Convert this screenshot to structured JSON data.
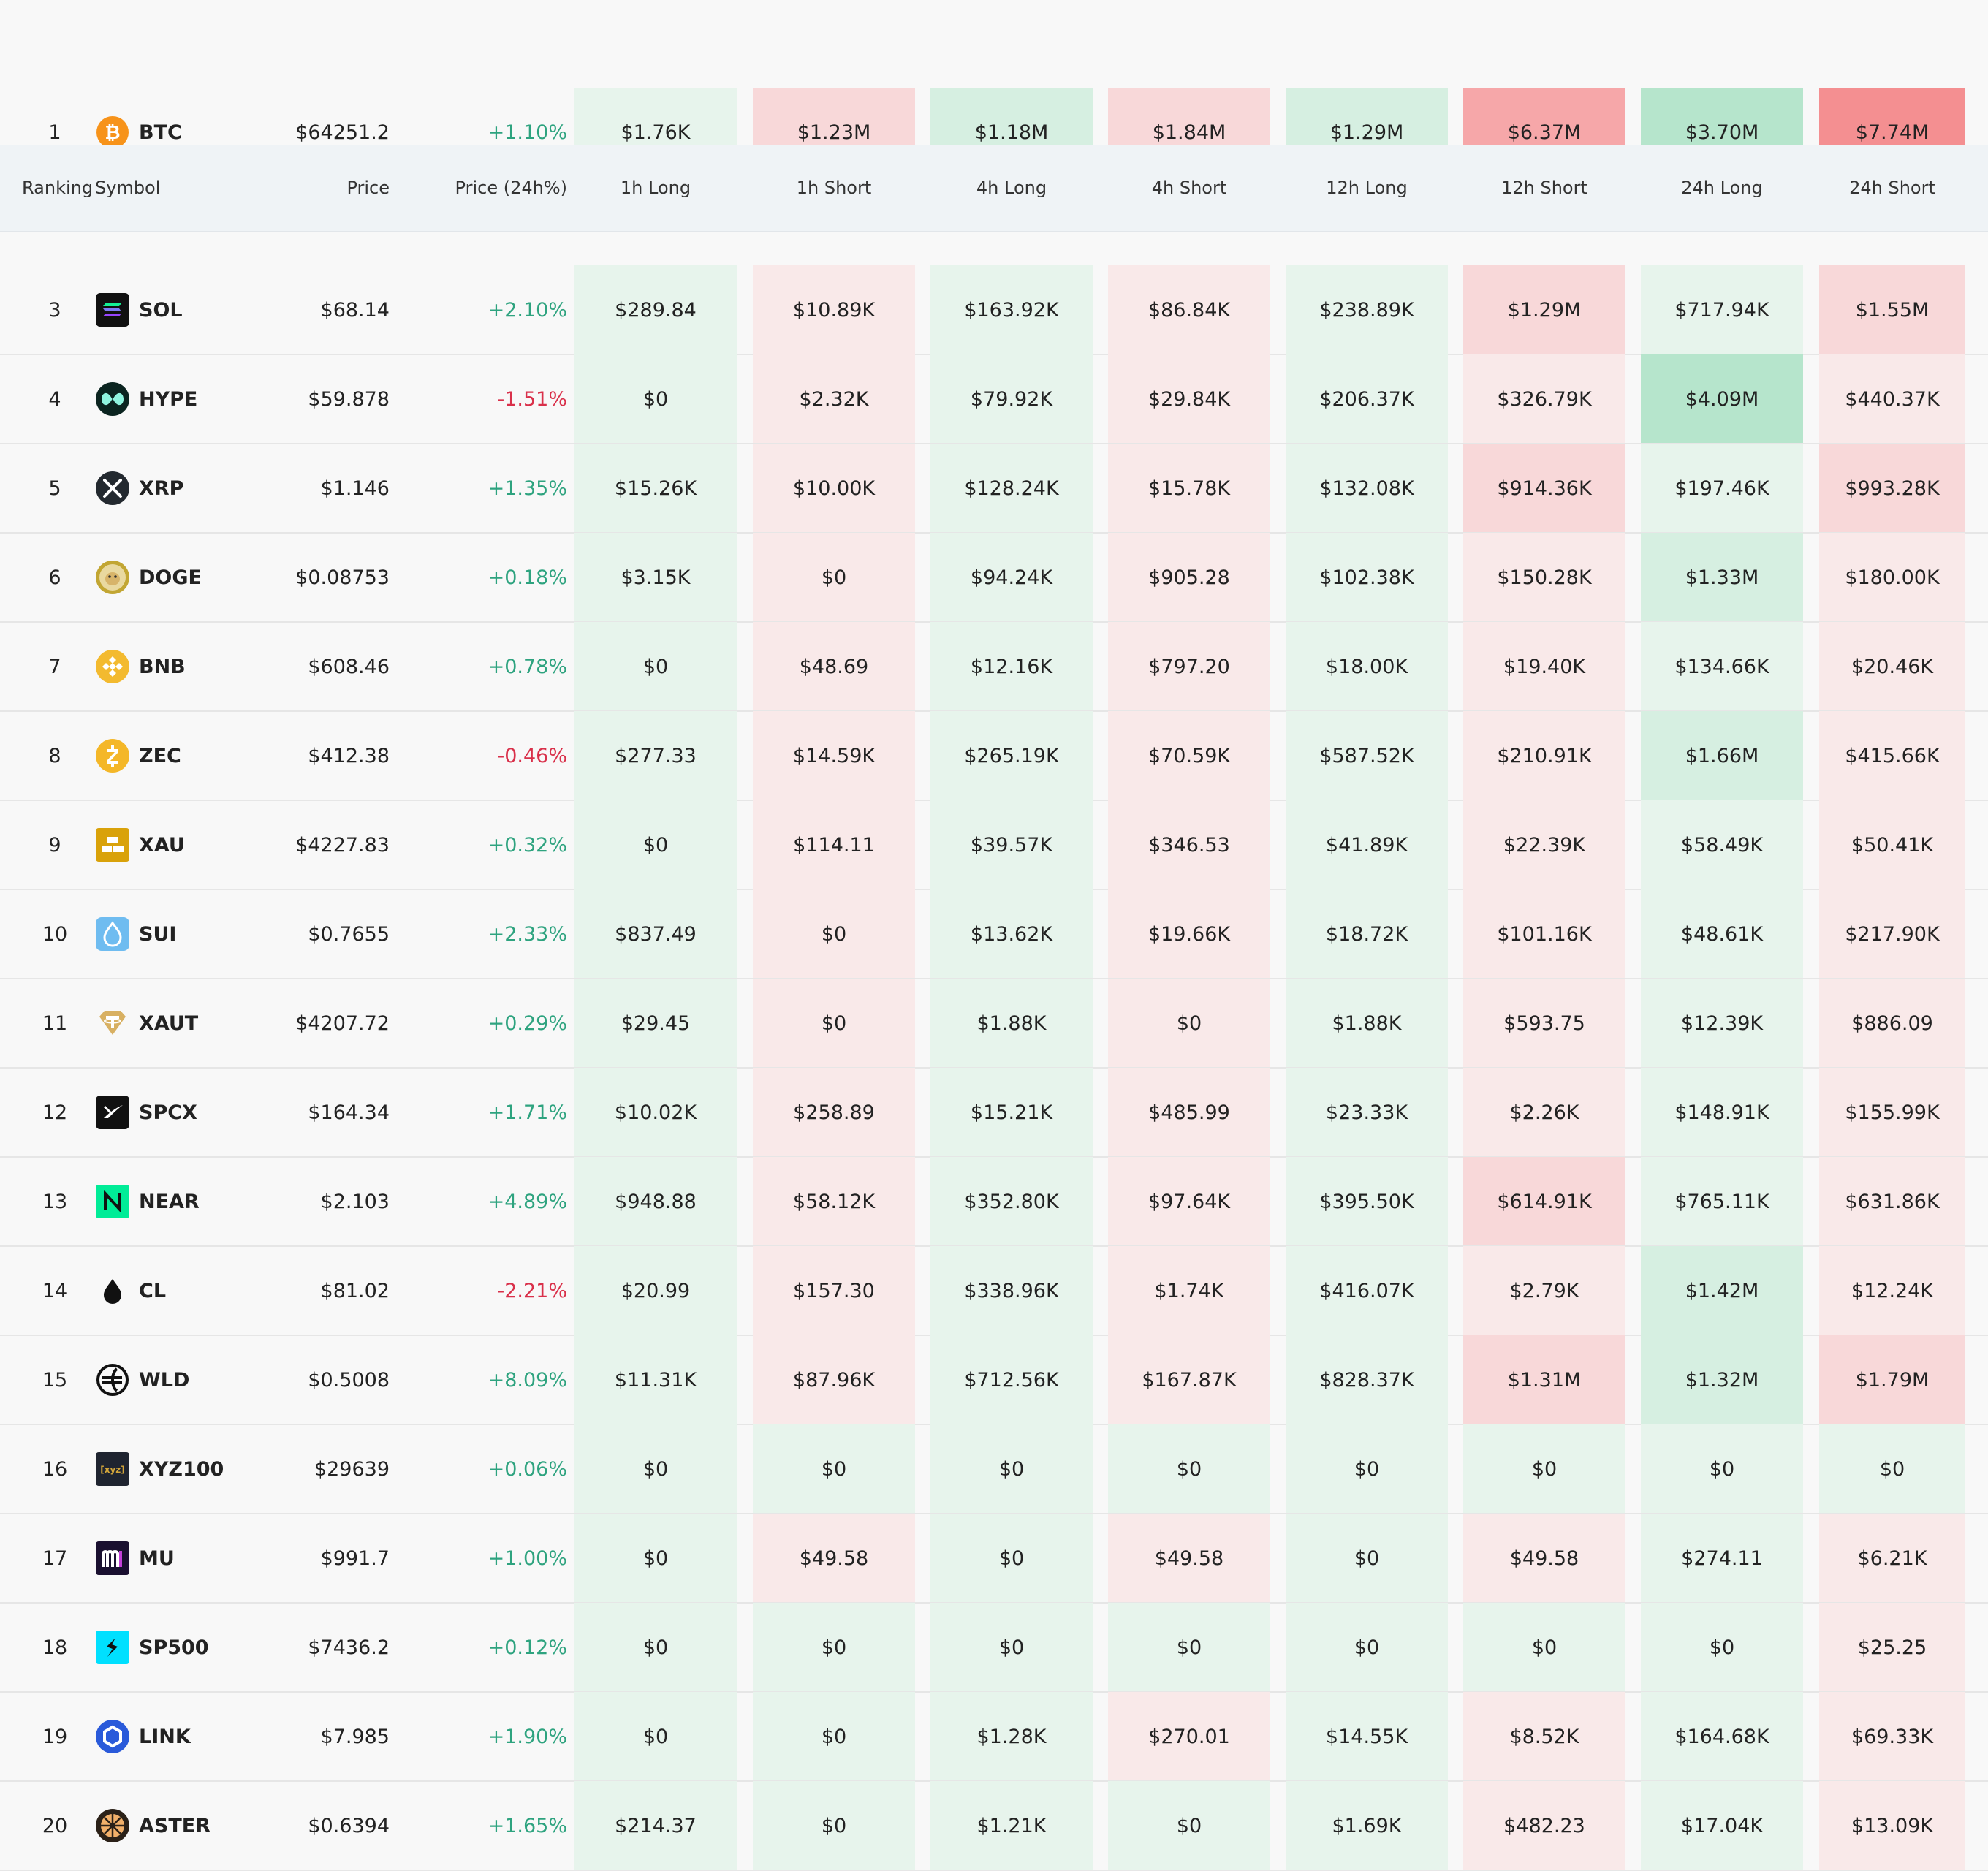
{
  "colors": {
    "background": "#f8f8f8",
    "header_bg": "#eff3f6",
    "positive_text": "#2ea37f",
    "negative_text": "#d9304a",
    "long_shade_light": "#e7f4ec",
    "long_shade_mid": "#d6efe1",
    "long_shade_strong": "#b6e5cc",
    "short_shade_light": "#f9e9e9",
    "short_shade_mid": "#f8d8d9",
    "short_shade_strong": "#f6a7a9"
  },
  "header": {
    "ranking": "Ranking",
    "symbol": "Symbol",
    "price": "Price",
    "price_change": "Price (24h%)",
    "h1_long": "1h Long",
    "h1_short": "1h Short",
    "h4_long": "4h Long",
    "h4_short": "4h Short",
    "h12_long": "12h Long",
    "h12_short": "12h Short",
    "h24_long": "24h Long",
    "h24_short": "24h Short"
  },
  "rows": [
    {
      "rank": "1",
      "symbol": "BTC",
      "icon": "bitcoin-icon",
      "price": "$64251.2",
      "change": "+1.10%",
      "dir": "up",
      "values": [
        "$1.76K",
        "$1.23M",
        "$1.18M",
        "$1.84M",
        "$1.29M",
        "$6.37M",
        "$3.70M",
        "$7.74M"
      ],
      "levels": [
        "l",
        "m",
        "m",
        "m",
        "m",
        "s",
        "s",
        "x"
      ]
    },
    {
      "rank": "3",
      "symbol": "SOL",
      "icon": "solana-icon",
      "price": "$68.14",
      "change": "+2.10%",
      "dir": "up",
      "values": [
        "$289.84",
        "$10.89K",
        "$163.92K",
        "$86.84K",
        "$238.89K",
        "$1.29M",
        "$717.94K",
        "$1.55M"
      ],
      "levels": [
        "l",
        "l",
        "l",
        "l",
        "l",
        "m",
        "l",
        "m"
      ]
    },
    {
      "rank": "4",
      "symbol": "HYPE",
      "icon": "hyperliquid-icon",
      "price": "$59.878",
      "change": "-1.51%",
      "dir": "down",
      "values": [
        "$0",
        "$2.32K",
        "$79.92K",
        "$29.84K",
        "$206.37K",
        "$326.79K",
        "$4.09M",
        "$440.37K"
      ],
      "levels": [
        "l",
        "l",
        "l",
        "l",
        "l",
        "l",
        "s",
        "l"
      ]
    },
    {
      "rank": "5",
      "symbol": "XRP",
      "icon": "xrp-icon",
      "price": "$1.146",
      "change": "+1.35%",
      "dir": "up",
      "values": [
        "$15.26K",
        "$10.00K",
        "$128.24K",
        "$15.78K",
        "$132.08K",
        "$914.36K",
        "$197.46K",
        "$993.28K"
      ],
      "levels": [
        "l",
        "l",
        "l",
        "l",
        "l",
        "m",
        "l",
        "m"
      ]
    },
    {
      "rank": "6",
      "symbol": "DOGE",
      "icon": "dogecoin-icon",
      "price": "$0.08753",
      "change": "+0.18%",
      "dir": "up",
      "values": [
        "$3.15K",
        "$0",
        "$94.24K",
        "$905.28",
        "$102.38K",
        "$150.28K",
        "$1.33M",
        "$180.00K"
      ],
      "levels": [
        "l",
        "l",
        "l",
        "l",
        "l",
        "l",
        "m",
        "l"
      ]
    },
    {
      "rank": "7",
      "symbol": "BNB",
      "icon": "bnb-icon",
      "price": "$608.46",
      "change": "+0.78%",
      "dir": "up",
      "values": [
        "$0",
        "$48.69",
        "$12.16K",
        "$797.20",
        "$18.00K",
        "$19.40K",
        "$134.66K",
        "$20.46K"
      ],
      "levels": [
        "l",
        "l",
        "l",
        "l",
        "l",
        "l",
        "l",
        "l"
      ]
    },
    {
      "rank": "8",
      "symbol": "ZEC",
      "icon": "zcash-icon",
      "price": "$412.38",
      "change": "-0.46%",
      "dir": "down",
      "values": [
        "$277.33",
        "$14.59K",
        "$265.19K",
        "$70.59K",
        "$587.52K",
        "$210.91K",
        "$1.66M",
        "$415.66K"
      ],
      "levels": [
        "l",
        "l",
        "l",
        "l",
        "l",
        "l",
        "m",
        "l"
      ]
    },
    {
      "rank": "9",
      "symbol": "XAU",
      "icon": "gold-bars-icon",
      "price": "$4227.83",
      "change": "+0.32%",
      "dir": "up",
      "values": [
        "$0",
        "$114.11",
        "$39.57K",
        "$346.53",
        "$41.89K",
        "$22.39K",
        "$58.49K",
        "$50.41K"
      ],
      "levels": [
        "l",
        "l",
        "l",
        "l",
        "l",
        "l",
        "l",
        "l"
      ]
    },
    {
      "rank": "10",
      "symbol": "SUI",
      "icon": "sui-drop-icon",
      "price": "$0.7655",
      "change": "+2.33%",
      "dir": "up",
      "values": [
        "$837.49",
        "$0",
        "$13.62K",
        "$19.66K",
        "$18.72K",
        "$101.16K",
        "$48.61K",
        "$217.90K"
      ],
      "levels": [
        "l",
        "l",
        "l",
        "l",
        "l",
        "l",
        "l",
        "l"
      ]
    },
    {
      "rank": "11",
      "symbol": "XAUT",
      "icon": "tether-gold-icon",
      "price": "$4207.72",
      "change": "+0.29%",
      "dir": "up",
      "values": [
        "$29.45",
        "$0",
        "$1.88K",
        "$0",
        "$1.88K",
        "$593.75",
        "$12.39K",
        "$886.09"
      ],
      "levels": [
        "l",
        "l",
        "l",
        "l",
        "l",
        "l",
        "l",
        "l"
      ]
    },
    {
      "rank": "12",
      "symbol": "SPCX",
      "icon": "spacex-icon",
      "price": "$164.34",
      "change": "+1.71%",
      "dir": "up",
      "values": [
        "$10.02K",
        "$258.89",
        "$15.21K",
        "$485.99",
        "$23.33K",
        "$2.26K",
        "$148.91K",
        "$155.99K"
      ],
      "levels": [
        "l",
        "l",
        "l",
        "l",
        "l",
        "l",
        "l",
        "l"
      ]
    },
    {
      "rank": "13",
      "symbol": "NEAR",
      "icon": "near-icon",
      "price": "$2.103",
      "change": "+4.89%",
      "dir": "up",
      "values": [
        "$948.88",
        "$58.12K",
        "$352.80K",
        "$97.64K",
        "$395.50K",
        "$614.91K",
        "$765.11K",
        "$631.86K"
      ],
      "levels": [
        "l",
        "l",
        "l",
        "l",
        "l",
        "m",
        "l",
        "l"
      ]
    },
    {
      "rank": "14",
      "symbol": "CL",
      "icon": "oil-drop-icon",
      "price": "$81.02",
      "change": "-2.21%",
      "dir": "down",
      "values": [
        "$20.99",
        "$157.30",
        "$338.96K",
        "$1.74K",
        "$416.07K",
        "$2.79K",
        "$1.42M",
        "$12.24K"
      ],
      "levels": [
        "l",
        "l",
        "l",
        "l",
        "l",
        "l",
        "m",
        "l"
      ]
    },
    {
      "rank": "15",
      "symbol": "WLD",
      "icon": "worldcoin-icon",
      "price": "$0.5008",
      "change": "+8.09%",
      "dir": "up",
      "values": [
        "$11.31K",
        "$87.96K",
        "$712.56K",
        "$167.87K",
        "$828.37K",
        "$1.31M",
        "$1.32M",
        "$1.79M"
      ],
      "levels": [
        "l",
        "l",
        "l",
        "l",
        "l",
        "m",
        "m",
        "m"
      ]
    },
    {
      "rank": "16",
      "symbol": "XYZ100",
      "icon": "xyz-index-icon",
      "price": "$29639",
      "change": "+0.06%",
      "dir": "up",
      "values": [
        "$0",
        "$0",
        "$0",
        "$0",
        "$0",
        "$0",
        "$0",
        "$0"
      ],
      "levels": [
        "l",
        "g",
        "l",
        "g",
        "l",
        "g",
        "l",
        "g"
      ]
    },
    {
      "rank": "17",
      "symbol": "MU",
      "icon": "micron-icon",
      "price": "$991.7",
      "change": "+1.00%",
      "dir": "up",
      "values": [
        "$0",
        "$49.58",
        "$0",
        "$49.58",
        "$0",
        "$49.58",
        "$274.11",
        "$6.21K"
      ],
      "levels": [
        "l",
        "l",
        "l",
        "l",
        "l",
        "l",
        "l",
        "l"
      ]
    },
    {
      "rank": "18",
      "symbol": "SP500",
      "icon": "sp500-icon",
      "price": "$7436.2",
      "change": "+0.12%",
      "dir": "up",
      "values": [
        "$0",
        "$0",
        "$0",
        "$0",
        "$0",
        "$0",
        "$0",
        "$25.25"
      ],
      "levels": [
        "l",
        "g",
        "l",
        "g",
        "l",
        "g",
        "l",
        "l"
      ]
    },
    {
      "rank": "19",
      "symbol": "LINK",
      "icon": "chainlink-icon",
      "price": "$7.985",
      "change": "+1.90%",
      "dir": "up",
      "values": [
        "$0",
        "$0",
        "$1.28K",
        "$270.01",
        "$14.55K",
        "$8.52K",
        "$164.68K",
        "$69.33K"
      ],
      "levels": [
        "l",
        "g",
        "l",
        "l",
        "l",
        "l",
        "l",
        "l"
      ]
    },
    {
      "rank": "20",
      "symbol": "ASTER",
      "icon": "aster-icon",
      "price": "$0.6394",
      "change": "+1.65%",
      "dir": "up",
      "values": [
        "$214.37",
        "$0",
        "$1.21K",
        "$0",
        "$1.69K",
        "$482.23",
        "$17.04K",
        "$13.09K"
      ],
      "levels": [
        "l",
        "g",
        "l",
        "g",
        "l",
        "l",
        "l",
        "l"
      ]
    }
  ]
}
